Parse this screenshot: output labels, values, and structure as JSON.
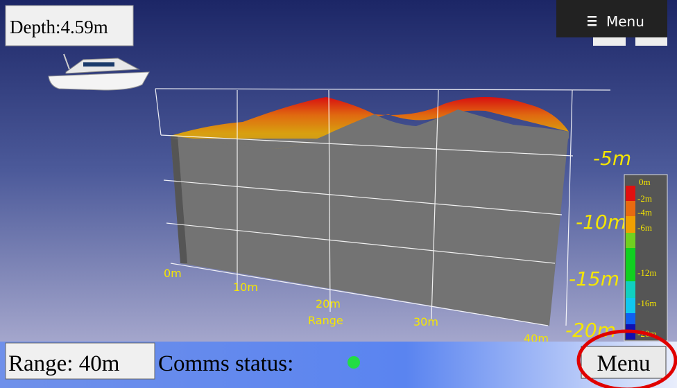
{
  "header": {
    "depth": "Depth:4.59m",
    "menu_button": "Menu"
  },
  "view": {
    "depth_labels": [
      "-5m",
      "-10m",
      "-15m",
      "-20m"
    ],
    "range_labels": [
      "0m",
      "10m",
      "20m",
      "30m",
      "40m"
    ],
    "range_axis_label": "Range"
  },
  "color_legend": {
    "labels": [
      "0m",
      "-2m",
      "-4m",
      "-6m",
      "-12m",
      "-16m",
      "-20m"
    ]
  },
  "status_bar": {
    "range": "Range: 40m",
    "comms_label": "Comms status:",
    "menu_button": "Menu"
  }
}
